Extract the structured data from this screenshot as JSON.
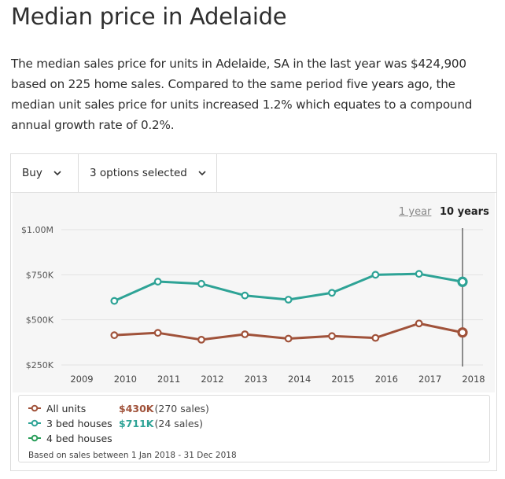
{
  "heading": "Median price in Adelaide",
  "description": "The median sales price for units in Adelaide, SA in the last year was $424,900 based on 225 home sales. Compared to the same period five years ago, the median unit sales price for units increased 1.2% which equates to a compound annual growth rate of 0.2%.",
  "controls": {
    "buy_label": "Buy",
    "options_label": "3 options selected"
  },
  "range_toggle": {
    "one_year": "1 year",
    "ten_years": "10 years",
    "selected": "10 years"
  },
  "legend": {
    "items": [
      {
        "name": "All units",
        "value": "$430K",
        "sales": "(270 sales)",
        "color": "#a0523a"
      },
      {
        "name": "3 bed houses",
        "value": "$711K",
        "sales": "(24 sales)",
        "color": "#2ea396"
      },
      {
        "name": "4 bed houses",
        "value": "",
        "sales": "",
        "color": "#2a9e5a"
      }
    ],
    "note": "Based on sales between 1 Jan 2018 - 31 Dec 2018"
  },
  "chart_data": {
    "type": "line",
    "x": [
      2009,
      2010,
      2011,
      2012,
      2013,
      2014,
      2015,
      2016,
      2017,
      2018
    ],
    "xticks": [
      "2009",
      "2010",
      "2011",
      "2012",
      "2013",
      "2014",
      "2015",
      "2016",
      "2017",
      "2018"
    ],
    "yticks": [
      "$250K",
      "$500K",
      "$750K",
      "$1.00M"
    ],
    "ytick_values": [
      250000,
      500000,
      750000,
      1000000
    ],
    "ylim": [
      250000,
      1000000
    ],
    "highlight_x": 2018,
    "grid": true,
    "series": [
      {
        "name": "All units",
        "color": "#a0523a",
        "values": [
          null,
          415000,
          428000,
          390000,
          420000,
          396000,
          410000,
          400000,
          480000,
          430000
        ]
      },
      {
        "name": "3 bed houses",
        "color": "#2ea396",
        "values": [
          null,
          605000,
          712000,
          700000,
          635000,
          612000,
          650000,
          750000,
          755000,
          711000
        ]
      }
    ]
  }
}
